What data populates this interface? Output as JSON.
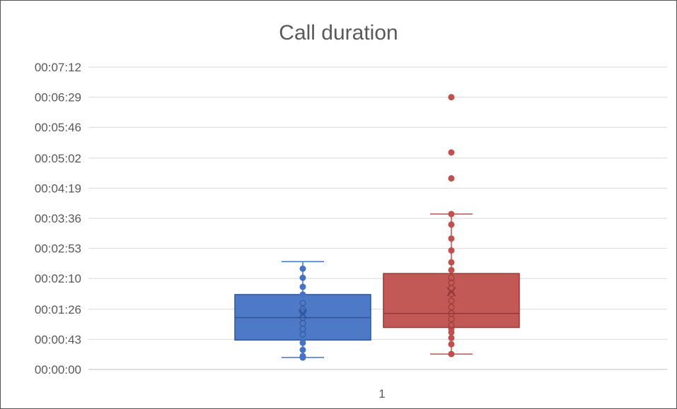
{
  "chart_data": {
    "type": "box",
    "title": "Call duration",
    "xlabel": "",
    "ylabel": "",
    "y_unit": "seconds",
    "ylim": [
      0,
      432
    ],
    "y_ticks": [
      0,
      43,
      86,
      130,
      173,
      216,
      259,
      302,
      346,
      389,
      432
    ],
    "y_tick_labels": [
      "00:00:00",
      "00:00:43",
      "00:01:26",
      "00:02:10",
      "00:02:53",
      "00:03:36",
      "00:04:19",
      "00:05:02",
      "00:05:46",
      "00:06:29",
      "00:07:12"
    ],
    "categories": [
      "1"
    ],
    "grid": true,
    "legend": "none",
    "series": [
      {
        "color": "#4472c4",
        "whisker_low": 17,
        "q1": 42,
        "median": 74,
        "q3": 107,
        "whisker_high": 154,
        "mean": 79,
        "points": [
          17,
          19,
          28,
          38,
          50,
          58,
          66,
          74,
          82,
          86,
          95,
          107,
          118,
          131,
          144
        ]
      },
      {
        "color": "#c0504d",
        "whisker_low": 22,
        "q1": 60,
        "median": 80,
        "q3": 137,
        "whisker_high": 222,
        "mean": 111,
        "points": [
          22,
          36,
          45,
          53,
          58,
          63,
          72,
          80,
          89,
          98,
          108,
          116,
          124,
          131,
          142,
          153,
          170,
          187,
          207,
          222,
          273,
          310,
          389
        ]
      }
    ]
  }
}
